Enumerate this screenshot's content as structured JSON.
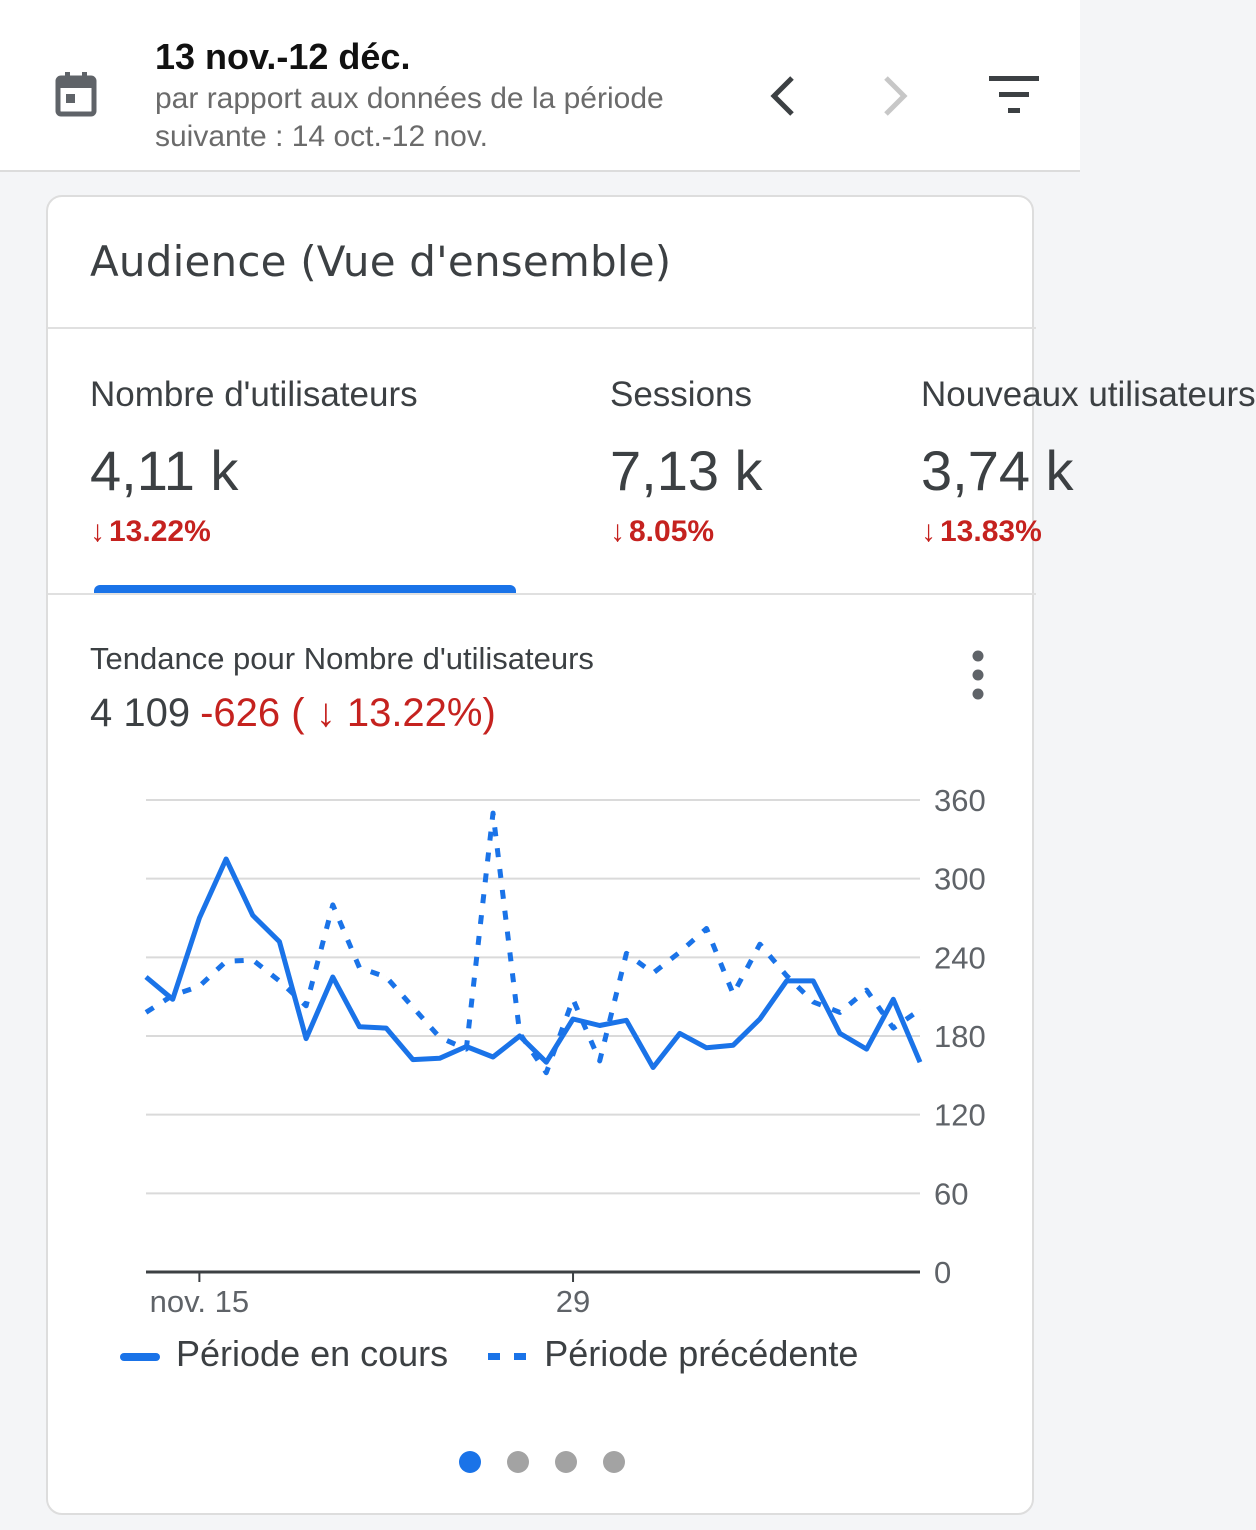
{
  "header": {
    "date_range": "13 nov.-12 déc.",
    "comparison": "par rapport aux données de la période suivante : 14 oct.-12 nov.",
    "icons": {
      "calendar": "calendar-icon",
      "prev": "chevron-left-icon",
      "next": "chevron-right-icon",
      "filter": "filter-icon"
    }
  },
  "card": {
    "title": "Audience (Vue d'ensemble)",
    "metrics": [
      {
        "label": "Nombre d'utilisateurs",
        "value": "4,11 k",
        "change": "13.22%",
        "arrow": "↓",
        "selected": true
      },
      {
        "label": "Sessions",
        "value": "7,13 k",
        "change": "8.05%",
        "arrow": "↓",
        "selected": false
      },
      {
        "label": "Nouveaux utilisateurs",
        "value": "3,74 k",
        "change": "13.83%",
        "arrow": "↓",
        "selected": false
      }
    ],
    "trend": {
      "title": "Tendance pour Nombre d'utilisateurs",
      "total": "4 109",
      "delta": "-626 ( ↓ 13.22%)"
    },
    "legend": {
      "current": "Période en cours",
      "previous": "Période précédente"
    },
    "pagination": {
      "count": 4,
      "active": 0
    }
  },
  "colors": {
    "accent": "#1a73e8",
    "negative": "#c5221f",
    "series": "#1a73e8"
  },
  "chart_data": {
    "type": "line",
    "x_tick_labels": [
      {
        "label": "nov. 15",
        "index": 2
      },
      {
        "label": "29",
        "index": 16
      }
    ],
    "ylim": [
      0,
      360
    ],
    "yticks": [
      0,
      60,
      120,
      180,
      240,
      300,
      360
    ],
    "grid": true,
    "legend_position": "bottom",
    "series": [
      {
        "name": "Période en cours",
        "style": "solid",
        "values": [
          225,
          208,
          270,
          315,
          272,
          252,
          178,
          225,
          187,
          186,
          162,
          163,
          172,
          164,
          180,
          160,
          193,
          188,
          192,
          156,
          182,
          171,
          173,
          193,
          222,
          222,
          182,
          170,
          208,
          160
        ]
      },
      {
        "name": "Période précédente",
        "style": "dashed",
        "values": [
          198,
          211,
          218,
          237,
          238,
          222,
          203,
          280,
          232,
          225,
          202,
          179,
          170,
          350,
          182,
          152,
          208,
          161,
          243,
          228,
          244,
          262,
          212,
          250,
          226,
          206,
          198,
          215,
          186,
          200
        ]
      }
    ]
  }
}
